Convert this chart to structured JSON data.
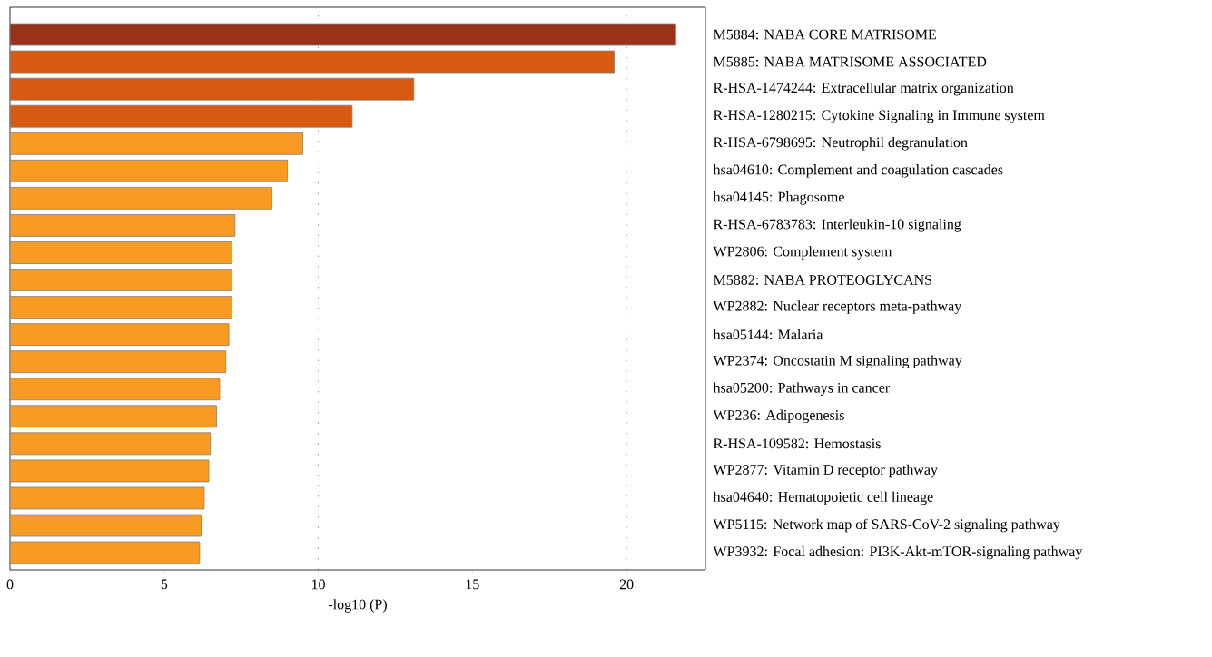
{
  "chart_data": {
    "type": "bar",
    "orientation": "horizontal",
    "xlabel": "-log10 (P)",
    "categories": [
      "M5884: NABA CORE MATRISOME",
      "M5885: NABA MATRISOME ASSOCIATED",
      "R-HSA-1474244: Extracellular matrix organization",
      "R-HSA-1280215: Cytokine Signaling in Immune system",
      "R-HSA-6798695: Neutrophil degranulation",
      "hsa04610: Complement and coagulation cascades",
      "hsa04145: Phagosome",
      "R-HSA-6783783: Interleukin-10 signaling",
      "WP2806: Complement system",
      "M5882: NABA PROTEOGLYCANS",
      "WP2882: Nuclear receptors meta-pathway",
      "hsa05144: Malaria",
      "WP2374: Oncostatin M signaling pathway",
      "hsa05200: Pathways in cancer",
      "WP236: Adipogenesis",
      "R-HSA-109582: Hemostasis",
      "WP2877: Vitamin D receptor pathway",
      "hsa04640: Hematopoietic cell lineage",
      "WP5115: Network map of SARS-CoV-2 signaling pathway",
      "WP3932: Focal adhesion: PI3K-Akt-mTOR-signaling pathway"
    ],
    "values": [
      21.6,
      19.6,
      13.1,
      11.1,
      9.5,
      9.0,
      8.5,
      7.3,
      7.2,
      7.2,
      7.2,
      7.1,
      7.0,
      6.8,
      6.7,
      6.5,
      6.45,
      6.3,
      6.2,
      6.15
    ],
    "colors": [
      "#9a3219",
      "#d75a10",
      "#d75a10",
      "#d75a10",
      "#f79b24",
      "#f79b24",
      "#f79b24",
      "#f79b24",
      "#f79b24",
      "#f79b24",
      "#f79b24",
      "#f79b24",
      "#f79b24",
      "#f79b24",
      "#f79b24",
      "#f79b24",
      "#f79b24",
      "#f79b24",
      "#f79b24",
      "#f79b24"
    ],
    "xlim": [
      0,
      22.56
    ],
    "xticks": [
      0,
      5,
      10,
      15,
      20
    ],
    "ref_lines": [
      {
        "axis": "x",
        "value": 10,
        "color": "#808080",
        "line_style": "dotted"
      },
      {
        "axis": "x",
        "value": 20,
        "color": "#808080",
        "line_style": "dotted"
      }
    ]
  }
}
